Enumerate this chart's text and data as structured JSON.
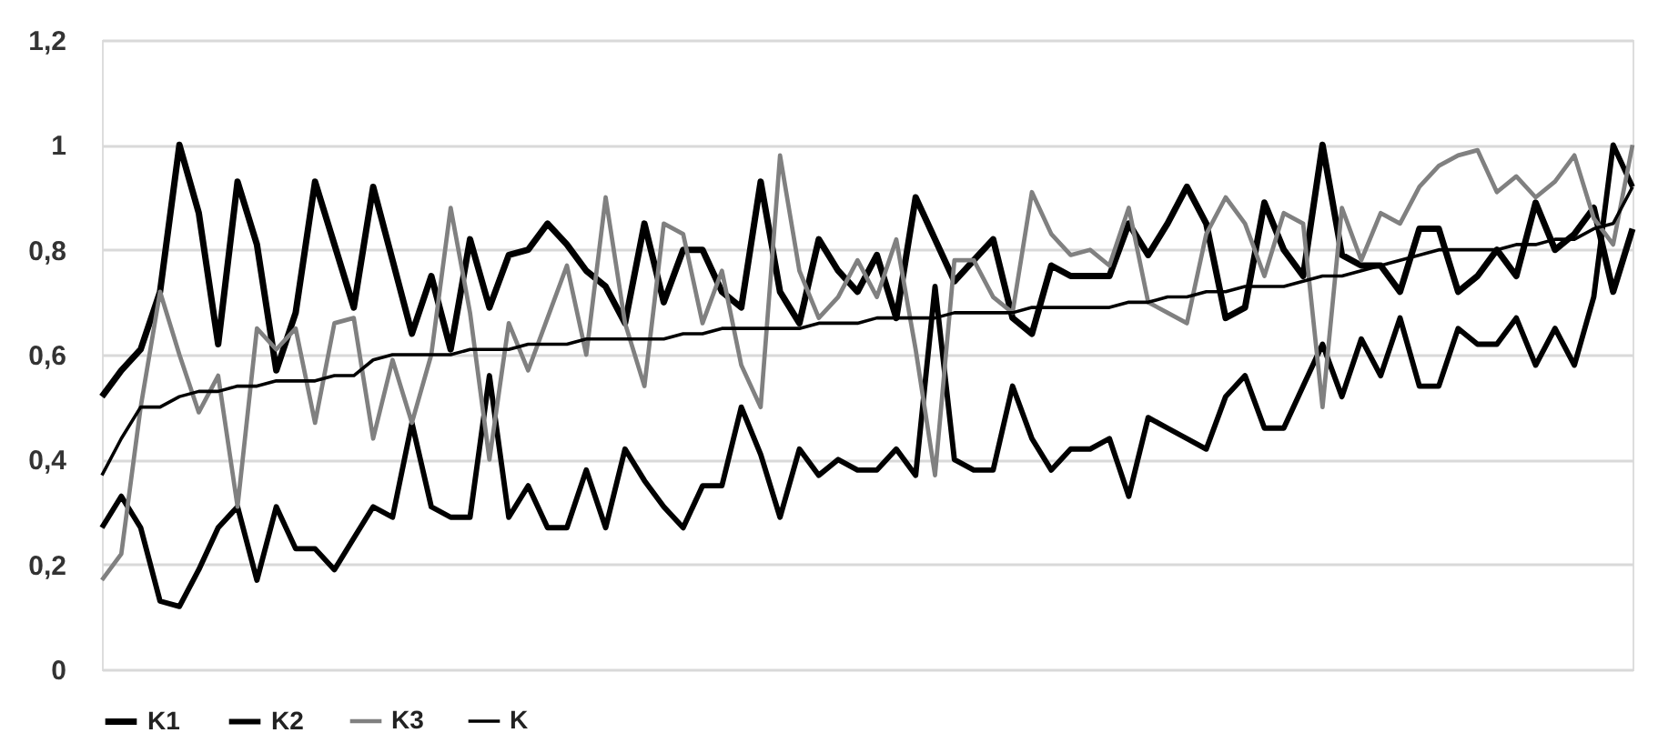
{
  "chart_data": {
    "type": "line",
    "categories": [
      null,
      null,
      null,
      null,
      null,
      null,
      null,
      null,
      null,
      null,
      null,
      null,
      null,
      null,
      null,
      null,
      null,
      null,
      null,
      null,
      null,
      null,
      null,
      null,
      null,
      null,
      null,
      null,
      null,
      null,
      null,
      null,
      null,
      null,
      null,
      null,
      null,
      null,
      null,
      null,
      null,
      null,
      null,
      null,
      null,
      null,
      null,
      null,
      null,
      null,
      null,
      null,
      null,
      null,
      null,
      null,
      null,
      null,
      null,
      null,
      null,
      null,
      null,
      null,
      null,
      null,
      null,
      null,
      null,
      null,
      null,
      null,
      null,
      null,
      null,
      null,
      null,
      null,
      null,
      null
    ],
    "series": [
      {
        "name": "K1",
        "color": "#000000",
        "values": [
          0.52,
          0.57,
          0.61,
          0.72,
          1.0,
          0.87,
          0.62,
          0.93,
          0.81,
          0.57,
          0.68,
          0.93,
          0.81,
          0.69,
          0.92,
          0.78,
          0.64,
          0.75,
          0.61,
          0.82,
          0.69,
          0.79,
          0.8,
          0.85,
          0.81,
          0.76,
          0.73,
          0.66,
          0.85,
          0.7,
          0.8,
          0.8,
          0.72,
          0.69,
          0.93,
          0.72,
          0.66,
          0.82,
          0.76,
          0.72,
          0.79,
          0.67,
          0.9,
          0.82,
          0.74,
          0.78,
          0.82,
          0.67,
          0.64,
          0.77,
          0.75,
          0.75,
          0.75,
          0.85,
          0.79,
          0.85,
          0.92,
          0.85,
          0.67,
          0.69,
          0.89,
          0.8,
          0.75,
          1.0,
          0.79,
          0.77,
          0.77,
          0.72,
          0.84,
          0.84,
          0.72,
          0.75,
          0.8,
          0.75,
          0.89,
          0.8,
          0.83,
          0.88,
          0.72,
          0.84
        ]
      },
      {
        "name": "K2",
        "color": "#000000",
        "values": [
          0.27,
          0.33,
          0.27,
          0.13,
          0.12,
          0.19,
          0.27,
          0.31,
          0.17,
          0.31,
          0.23,
          0.23,
          0.19,
          0.25,
          0.31,
          0.29,
          0.47,
          0.31,
          0.29,
          0.29,
          0.56,
          0.29,
          0.35,
          0.27,
          0.27,
          0.38,
          0.27,
          0.42,
          0.36,
          0.31,
          0.27,
          0.35,
          0.35,
          0.5,
          0.41,
          0.29,
          0.42,
          0.37,
          0.4,
          0.38,
          0.38,
          0.42,
          0.37,
          0.73,
          0.4,
          0.38,
          0.38,
          0.54,
          0.44,
          0.38,
          0.42,
          0.42,
          0.44,
          0.33,
          0.48,
          0.46,
          0.44,
          0.42,
          0.52,
          0.56,
          0.46,
          0.46,
          0.54,
          0.62,
          0.52,
          0.63,
          0.56,
          0.67,
          0.54,
          0.54,
          0.65,
          0.62,
          0.62,
          0.67,
          0.58,
          0.65,
          0.58,
          0.71,
          1.0,
          0.92
        ]
      },
      {
        "name": "K3",
        "color": "#808080",
        "values": [
          0.17,
          0.22,
          0.5,
          0.72,
          0.6,
          0.49,
          0.56,
          0.31,
          0.65,
          0.61,
          0.65,
          0.47,
          0.66,
          0.67,
          0.44,
          0.59,
          0.47,
          0.6,
          0.88,
          0.68,
          0.4,
          0.66,
          0.57,
          0.67,
          0.77,
          0.6,
          0.9,
          0.66,
          0.54,
          0.85,
          0.83,
          0.66,
          0.76,
          0.58,
          0.5,
          0.98,
          0.76,
          0.67,
          0.71,
          0.78,
          0.71,
          0.82,
          0.61,
          0.37,
          0.78,
          0.78,
          0.71,
          0.68,
          0.91,
          0.83,
          0.79,
          0.8,
          0.77,
          0.88,
          0.7,
          0.68,
          0.66,
          0.83,
          0.9,
          0.85,
          0.75,
          0.87,
          0.85,
          0.5,
          0.88,
          0.78,
          0.87,
          0.85,
          0.92,
          0.96,
          0.98,
          0.99,
          0.91,
          0.94,
          0.9,
          0.93,
          0.98,
          0.86,
          0.81,
          1.0
        ]
      },
      {
        "name": "K",
        "color": "#000000",
        "values": [
          0.37,
          0.44,
          0.5,
          0.5,
          0.52,
          0.53,
          0.53,
          0.54,
          0.54,
          0.55,
          0.55,
          0.55,
          0.56,
          0.56,
          0.59,
          0.6,
          0.6,
          0.6,
          0.6,
          0.61,
          0.61,
          0.61,
          0.62,
          0.62,
          0.62,
          0.63,
          0.63,
          0.63,
          0.63,
          0.63,
          0.64,
          0.64,
          0.65,
          0.65,
          0.65,
          0.65,
          0.65,
          0.66,
          0.66,
          0.66,
          0.67,
          0.67,
          0.67,
          0.67,
          0.68,
          0.68,
          0.68,
          0.68,
          0.69,
          0.69,
          0.69,
          0.69,
          0.69,
          0.7,
          0.7,
          0.71,
          0.71,
          0.72,
          0.72,
          0.73,
          0.73,
          0.73,
          0.74,
          0.75,
          0.75,
          0.76,
          0.77,
          0.78,
          0.79,
          0.8,
          0.8,
          0.8,
          0.8,
          0.81,
          0.81,
          0.82,
          0.82,
          0.84,
          0.85,
          0.92
        ]
      }
    ],
    "ylim": [
      0,
      1.2
    ],
    "yticks": [
      0,
      {
        "value": 0.2,
        "label": "0,2"
      },
      {
        "value": 0.4,
        "label": "0,4"
      },
      {
        "value": 0.6,
        "label": "0,6"
      },
      {
        "value": 0.8,
        "label": "0,8"
      },
      1,
      {
        "value": 1.2,
        "label": "1,2"
      }
    ],
    "grid": "y",
    "legend": "bottom",
    "marker": "none",
    "line_style": "solid"
  }
}
